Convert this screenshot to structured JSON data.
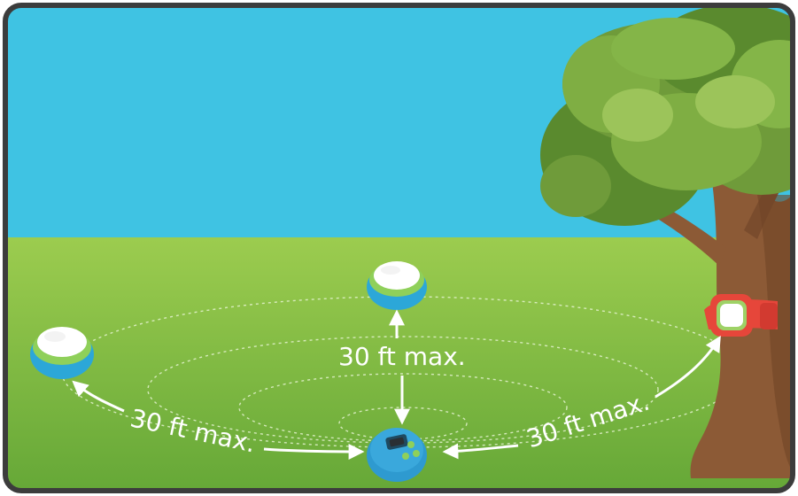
{
  "labels": {
    "center": "30 ft max.",
    "left": "30 ft max.",
    "right": "30 ft max."
  },
  "colors": {
    "sky": "#3fc3e3",
    "grass_light": "#9ccc4f",
    "grass_dark": "#63a636",
    "tree_trunk": "#8c5a36",
    "foliage": "#6f9b3a",
    "pod": "#2ca7d8",
    "hub": "#2e9ad0",
    "band": "#e6463a"
  },
  "icons": {
    "pod": "sensor-pod-icon",
    "hub": "base-hub-icon",
    "band": "wrist-band-sensor-icon",
    "tree": "tree-icon"
  }
}
